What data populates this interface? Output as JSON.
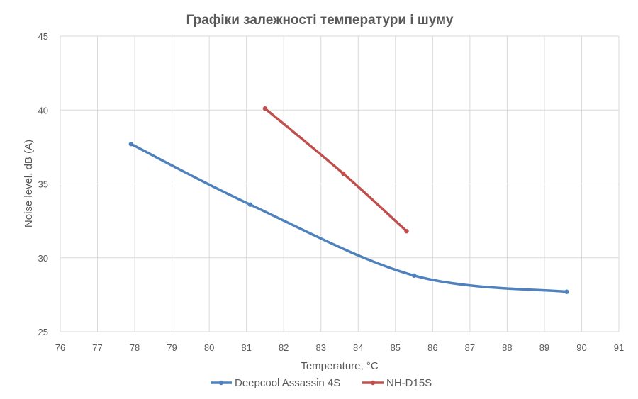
{
  "chart_data": {
    "type": "line",
    "title": "Графіки залежності температури і шуму",
    "xlabel": "Temperature, °C",
    "ylabel": "Noise level, dB (A)",
    "xlim": [
      76,
      91
    ],
    "ylim": [
      25,
      45
    ],
    "x_ticks": [
      76,
      77,
      78,
      79,
      80,
      81,
      82,
      83,
      84,
      85,
      86,
      87,
      88,
      89,
      90,
      91
    ],
    "y_ticks": [
      25,
      30,
      35,
      40,
      45
    ],
    "grid": true,
    "legend_position": "bottom",
    "series": [
      {
        "name": "Deepcool Assassin 4S",
        "color": "#4f81bd",
        "smooth": true,
        "points": [
          [
            77.9,
            37.7
          ],
          [
            81.1,
            33.6
          ],
          [
            85.5,
            28.8
          ],
          [
            89.6,
            27.7
          ]
        ]
      },
      {
        "name": "NH-D15S",
        "color": "#c0504d",
        "smooth": true,
        "points": [
          [
            81.5,
            40.1
          ],
          [
            83.6,
            35.7
          ],
          [
            85.3,
            31.8
          ]
        ]
      }
    ]
  }
}
